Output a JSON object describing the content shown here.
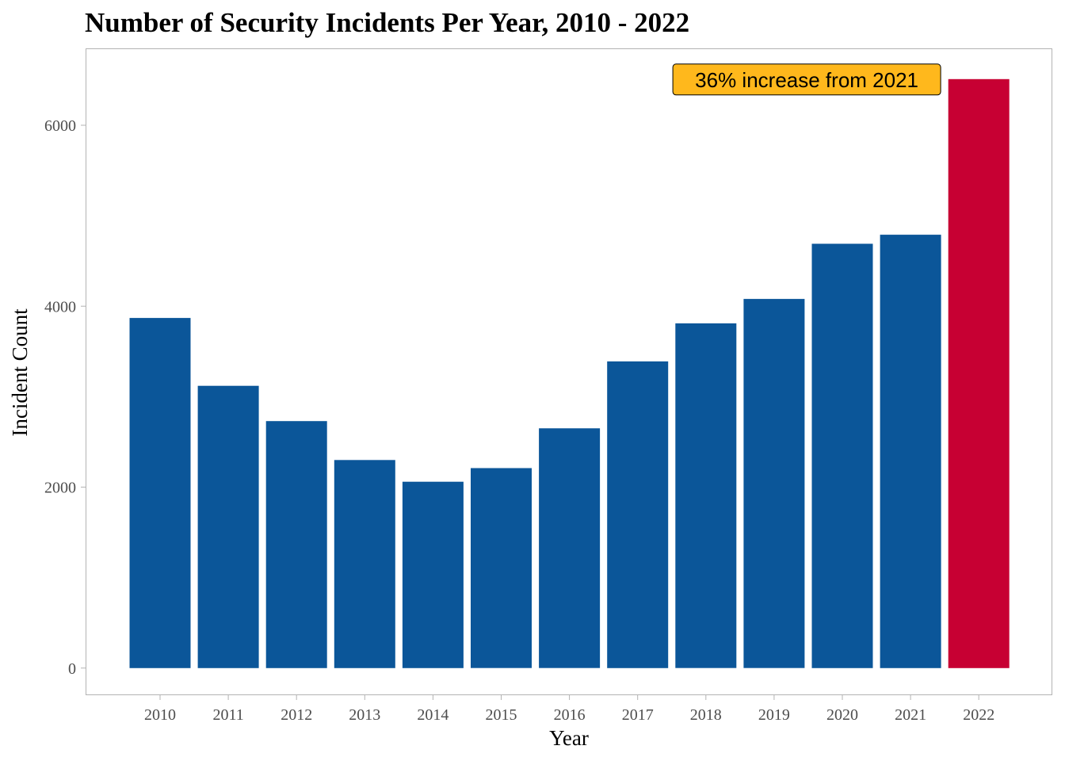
{
  "chart_data": {
    "type": "bar",
    "title": "Number of Security Incidents Per Year, 2010 - 2022",
    "xlabel": "Year",
    "ylabel": "Incident Count",
    "categories": [
      "2010",
      "2011",
      "2012",
      "2013",
      "2014",
      "2015",
      "2016",
      "2017",
      "2018",
      "2019",
      "2020",
      "2021",
      "2022"
    ],
    "values": [
      3870,
      3120,
      2730,
      2300,
      2060,
      2210,
      2650,
      3390,
      3810,
      4080,
      4690,
      4790,
      6510
    ],
    "highlight_category": "2022",
    "ylim": [
      -300,
      6850
    ],
    "yticks": [
      0,
      2000,
      4000,
      6000
    ],
    "ytick_labels": [
      "0",
      "2000",
      "4000",
      "6000"
    ],
    "grid": false,
    "legend": "none",
    "annotation": {
      "text": "36% increase from 2021",
      "anchor_category": "2021",
      "anchor_value": 6510
    },
    "colors": {
      "bar": "#0b5699",
      "highlight_bar": "#c70033",
      "annotation_fill": "#ffb81c",
      "panel_border": "#b3b3b3"
    }
  }
}
